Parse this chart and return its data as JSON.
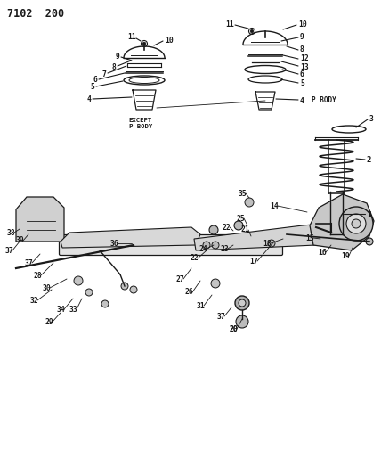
{
  "title": "7102  200",
  "bg_color": "#ffffff",
  "line_color": "#1a1a1a",
  "text_color": "#1a1a1a",
  "except_label": "EXCEPT\nP BODY",
  "pbody_label": "P BODY"
}
